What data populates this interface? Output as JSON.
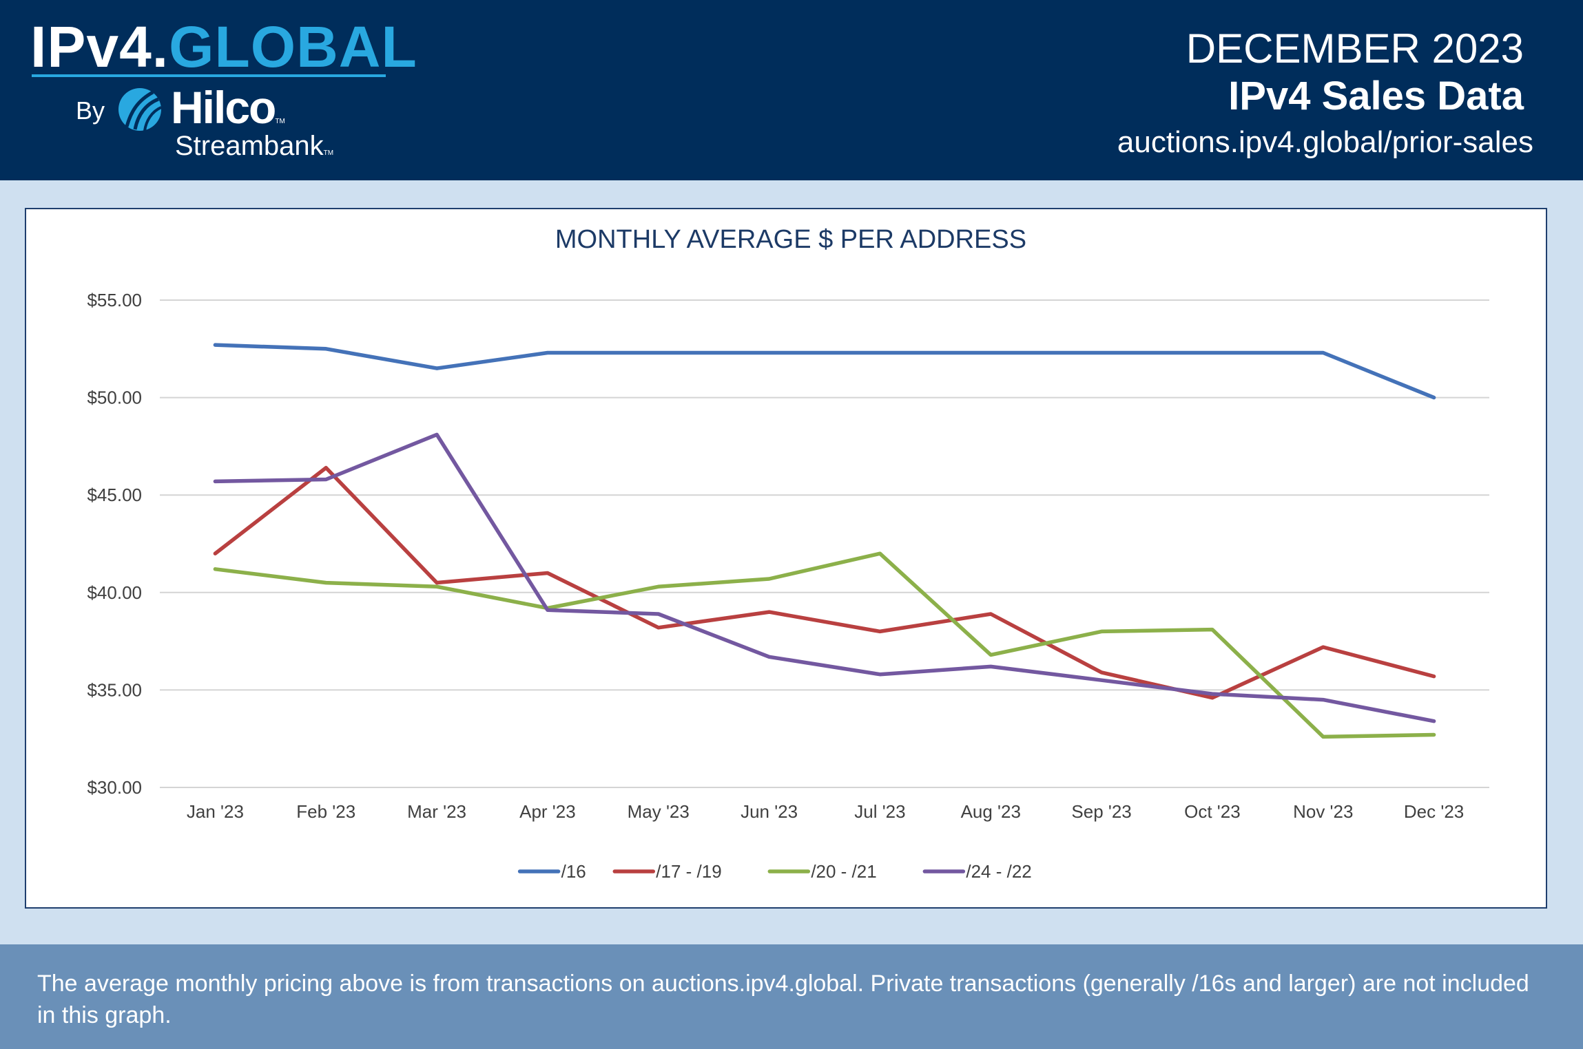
{
  "header": {
    "logo_ipv4": "IPv4.",
    "logo_global": "GLOBAL",
    "logo_by": "By",
    "logo_hilco": "Hilco",
    "logo_streambank": "Streambank",
    "logo_tm": "TM",
    "logo_icon": "hilco-swoosh-icon",
    "month": "DECEMBER 2023",
    "title": "IPv4 Sales Data",
    "url": "auctions.ipv4.global/prior-sales"
  },
  "footer": {
    "note": "The average monthly pricing above is from transactions on auctions.ipv4.global. Private transactions (generally /16s and larger) are not included in this graph."
  },
  "colors": {
    "header_bg": "#002d5b",
    "accent": "#29a8e0",
    "footer_bg": "#6a90b8"
  },
  "chart_data": {
    "type": "line",
    "title": "MONTHLY AVERAGE $ PER ADDRESS",
    "xlabel": "",
    "ylabel": "",
    "categories": [
      "Jan '23",
      "Feb '23",
      "Mar '23",
      "Apr '23",
      "May '23",
      "Jun '23",
      "Jul '23",
      "Aug '23",
      "Sep '23",
      "Oct '23",
      "Nov '23",
      "Dec '23"
    ],
    "ylim": [
      30,
      55
    ],
    "yticks": [
      30,
      35,
      40,
      45,
      50,
      55
    ],
    "ytick_labels": [
      "$30.00",
      "$35.00",
      "$40.00",
      "$45.00",
      "$50.00",
      "$55.00"
    ],
    "grid": true,
    "legend_position": "bottom",
    "series": [
      {
        "name": "/16",
        "color": "#4472b8",
        "values": [
          52.7,
          52.5,
          51.5,
          52.3,
          52.3,
          52.3,
          52.3,
          52.3,
          52.3,
          52.3,
          52.3,
          50.0
        ]
      },
      {
        "name": "/17 - /19",
        "color": "#b94040",
        "values": [
          42.0,
          46.4,
          40.5,
          41.0,
          38.2,
          39.0,
          38.0,
          38.9,
          35.9,
          34.6,
          37.2,
          35.7
        ]
      },
      {
        "name": "/20 - /21",
        "color": "#8cb04a",
        "values": [
          41.2,
          40.5,
          40.3,
          39.2,
          40.3,
          40.7,
          42.0,
          36.8,
          38.0,
          38.1,
          32.6,
          32.7
        ]
      },
      {
        "name": "/24 - /22",
        "color": "#7358a0",
        "values": [
          45.7,
          45.8,
          48.1,
          39.1,
          38.9,
          36.7,
          35.8,
          36.2,
          35.5,
          34.8,
          34.5,
          33.4
        ]
      }
    ]
  }
}
